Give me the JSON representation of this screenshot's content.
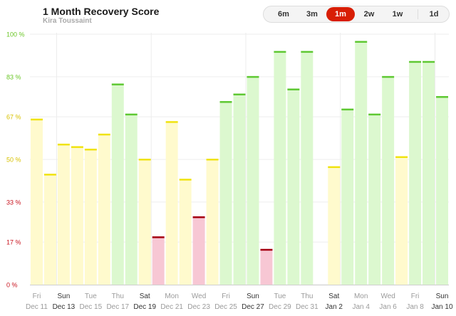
{
  "header": {
    "title": "1 Month Recovery Score",
    "subtitle": "Kira Toussaint"
  },
  "range_selector": {
    "options": [
      "6m",
      "3m",
      "1m",
      "2w",
      "1w",
      "1d"
    ],
    "selected": "1m"
  },
  "colors": {
    "accent": "#d81e05",
    "green_fill": "#dcf8cf",
    "green_cap": "#5ec832",
    "green_label": "#6ac626",
    "yellow_fill": "#fffacd",
    "yellow_cap": "#f0e30f",
    "yellow_label": "#d8c200",
    "red_fill": "#f7c7d4",
    "red_cap": "#a50010",
    "red_label": "#c8131e"
  },
  "chart_data": {
    "type": "bar",
    "title": "1 Month Recovery Score",
    "ylim": [
      0,
      100
    ],
    "y_ticks": [
      "0 %",
      "17 %",
      "33 %",
      "50 %",
      "67 %",
      "83 %",
      "100 %"
    ],
    "y_tick_values": [
      0,
      17,
      33,
      50,
      67,
      83,
      100
    ],
    "categories": [
      "Dec 11",
      "Dec 12",
      "Dec 13",
      "Dec 14",
      "Dec 15",
      "Dec 16",
      "Dec 17",
      "Dec 18",
      "Dec 19",
      "Dec 20",
      "Dec 21",
      "Dec 22",
      "Dec 23",
      "Dec 24",
      "Dec 25",
      "Dec 26",
      "Dec 27",
      "Dec 28",
      "Dec 29",
      "Dec 30",
      "Dec 31",
      "Jan 1",
      "Jan 2",
      "Jan 3",
      "Jan 4",
      "Jan 5",
      "Jan 6",
      "Jan 7",
      "Jan 8",
      "Jan 9",
      "Jan 10"
    ],
    "values": [
      66,
      44,
      56,
      55,
      54,
      60,
      80,
      68,
      50,
      19,
      65,
      42,
      27,
      50,
      73,
      76,
      83,
      14,
      93,
      78,
      93,
      null,
      47,
      70,
      97,
      68,
      83,
      51,
      89,
      89,
      75
    ],
    "zones": {
      "red_below": 34,
      "green_from": 67
    },
    "x_label_indices": [
      0,
      2,
      4,
      6,
      8,
      10,
      12,
      14,
      16,
      18,
      20,
      22,
      24,
      26,
      28,
      30
    ],
    "x_label_days": [
      "Fri",
      "Sun",
      "Tue",
      "Thu",
      "Sat",
      "Mon",
      "Wed",
      "Fri",
      "Sun",
      "Tue",
      "Thu",
      "Sat",
      "Mon",
      "Wed",
      "Fri",
      "Sun"
    ],
    "x_label_dates": [
      "Dec 11",
      "Dec 13",
      "Dec 15",
      "Dec 17",
      "Dec 19",
      "Dec 21",
      "Dec 23",
      "Dec 25",
      "Dec 27",
      "Dec 29",
      "Dec 31",
      "Jan 2",
      "Jan 4",
      "Jan 6",
      "Jan 8",
      "Jan 10"
    ],
    "week_start_indices": [
      2,
      9,
      16,
      23,
      30
    ]
  }
}
